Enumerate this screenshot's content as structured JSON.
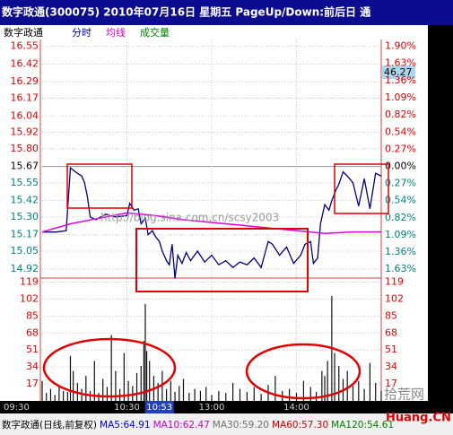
{
  "title_bar": "数字政通(300075) 2010年07月16日 星期五 PageUp/Down:前后日 通",
  "header": {
    "stock": "数字政通",
    "tabs": [
      {
        "label": "分时",
        "color": "#0000c0"
      },
      {
        "label": "均线",
        "color": "#d000d0"
      },
      {
        "label": "成交量",
        "color": "#008000"
      }
    ]
  },
  "chart_data": [
    {
      "type": "line",
      "xlim": [
        0,
        240
      ],
      "ylim": [
        14.82,
        16.6
      ],
      "y2lim": [
        -1.84,
        2.01
      ],
      "grid": true,
      "yticks": [
        16.55,
        16.42,
        16.29,
        16.17,
        16.04,
        15.92,
        {
          "value": 15.8,
          "label": "15.80"
        },
        15.67,
        15.55,
        15.42,
        {
          "value": 15.3,
          "label": "15.30"
        },
        15.17,
        15.05,
        14.92
      ],
      "y2ticks": [
        {
          "value": 1.9,
          "label": "1.90%"
        },
        {
          "value": 1.63,
          "label": "1.63%"
        },
        {
          "value": 1.36,
          "label": "1.36%"
        },
        {
          "value": 1.09,
          "label": "1.09%"
        },
        {
          "value": 0.82,
          "label": "0.82%"
        },
        {
          "value": 0.54,
          "label": "0.54%"
        },
        {
          "value": 0.27,
          "label": "0.27%"
        },
        {
          "value": 0,
          "label": "0.00%"
        },
        {
          "value": -0.27,
          "label": "0.27%"
        },
        {
          "value": -0.54,
          "label": "0.54%"
        },
        {
          "value": -0.82,
          "label": "0.82%"
        },
        {
          "value": -1.09,
          "label": "1.09%"
        },
        {
          "value": -1.36,
          "label": "1.36%"
        },
        {
          "value": -1.63,
          "label": "1.63%"
        }
      ],
      "xticks": [
        {
          "value": 0,
          "label": "09:30"
        },
        {
          "value": 60,
          "label": "10:30"
        },
        {
          "value": 120,
          "label": "13:00"
        },
        {
          "value": 180,
          "label": "14:00"
        }
      ],
      "cursor": {
        "value": 83,
        "label": "10:53"
      },
      "series": [
        {
          "color": "#000080",
          "x": [
            0,
            10,
            17,
            20,
            25,
            28,
            30,
            32,
            34,
            38,
            45,
            52,
            60,
            62,
            65,
            68,
            70,
            73,
            75,
            78,
            80,
            83,
            85,
            88,
            90,
            92,
            94,
            96,
            99,
            102,
            105,
            110,
            115,
            120,
            125,
            130,
            135,
            140,
            145,
            150,
            155,
            160,
            163,
            168,
            173,
            178,
            183,
            186,
            190,
            192,
            195,
            197,
            200,
            203,
            205,
            208,
            210,
            213,
            216,
            220,
            224,
            228,
            232,
            236,
            240
          ],
          "values": [
            15.19,
            15.19,
            15.2,
            15.66,
            15.62,
            15.6,
            15.55,
            15.45,
            15.3,
            15.28,
            15.32,
            15.3,
            15.31,
            15.4,
            15.35,
            15.36,
            15.25,
            15.29,
            15.17,
            15.2,
            15.16,
            15.12,
            15.05,
            14.98,
            14.95,
            15.1,
            14.85,
            15.02,
            14.96,
            15.04,
            14.98,
            15.05,
            14.97,
            15.02,
            14.95,
            14.98,
            14.93,
            14.97,
            14.95,
            15.0,
            14.93,
            15.12,
            15.1,
            15.02,
            15.08,
            14.96,
            15.02,
            15.1,
            15.12,
            14.96,
            15.0,
            15.25,
            15.39,
            15.35,
            15.42,
            15.5,
            15.54,
            15.63,
            15.6,
            15.55,
            15.38,
            15.58,
            15.36,
            15.62,
            15.6
          ]
        },
        {
          "color": "#e000e0",
          "x": [
            0,
            20,
            40,
            60,
            80,
            100,
            120,
            140,
            160,
            180,
            200,
            220,
            240
          ],
          "values": [
            15.19,
            15.25,
            15.29,
            15.33,
            15.31,
            15.28,
            15.26,
            15.24,
            15.22,
            15.2,
            15.18,
            15.19,
            15.19
          ]
        }
      ]
    },
    {
      "type": "bar",
      "xlim": [
        0,
        240
      ],
      "ylim": [
        0,
        123
      ],
      "yticks": [
        119,
        102,
        85,
        68,
        51,
        34,
        17
      ],
      "color": "#101010",
      "x": [
        0,
        3,
        6,
        9,
        12,
        15,
        18,
        20,
        22,
        25,
        28,
        31,
        34,
        37,
        40,
        43,
        46,
        49,
        52,
        55,
        58,
        61,
        64,
        67,
        70,
        72,
        73,
        74,
        76,
        79,
        82,
        85,
        88,
        91,
        94,
        97,
        100,
        104,
        108,
        112,
        116,
        120,
        125,
        130,
        135,
        140,
        145,
        150,
        155,
        160,
        165,
        170,
        175,
        180,
        185,
        190,
        194,
        198,
        200,
        202,
        205,
        207,
        210,
        213,
        216,
        220,
        224,
        228,
        232,
        236,
        240
      ],
      "values": [
        20,
        8,
        12,
        6,
        15,
        10,
        9,
        45,
        30,
        18,
        12,
        25,
        10,
        40,
        8,
        22,
        14,
        66,
        30,
        12,
        48,
        20,
        15,
        28,
        35,
        60,
        97,
        50,
        40,
        25,
        18,
        30,
        12,
        20,
        9,
        15,
        22,
        8,
        12,
        10,
        14,
        6,
        10,
        8,
        18,
        12,
        9,
        14,
        7,
        16,
        25,
        10,
        12,
        8,
        20,
        14,
        9,
        30,
        25,
        40,
        105,
        48,
        35,
        22,
        30,
        15,
        20,
        12,
        38,
        18,
        10
      ]
    }
  ],
  "right_panel": {
    "price": "46.27"
  },
  "watermarks": {
    "blog": "http://blog.sina.com.cn/scsy2003",
    "site": "拾荒网",
    "domain": "Huang.CN"
  },
  "status": [
    {
      "label": "数字政通(日线,前复权)",
      "color": "#000000"
    },
    {
      "label": "MA5:64.91",
      "color": "#0000c0"
    },
    {
      "label": "MA10:62.47",
      "color": "#c000c0"
    },
    {
      "label": "MA30:59.20",
      "color": "#707070"
    },
    {
      "label": "MA60:57.30",
      "color": "#d00000"
    },
    {
      "label": "MA120:54.61",
      "color": "#008000"
    }
  ]
}
